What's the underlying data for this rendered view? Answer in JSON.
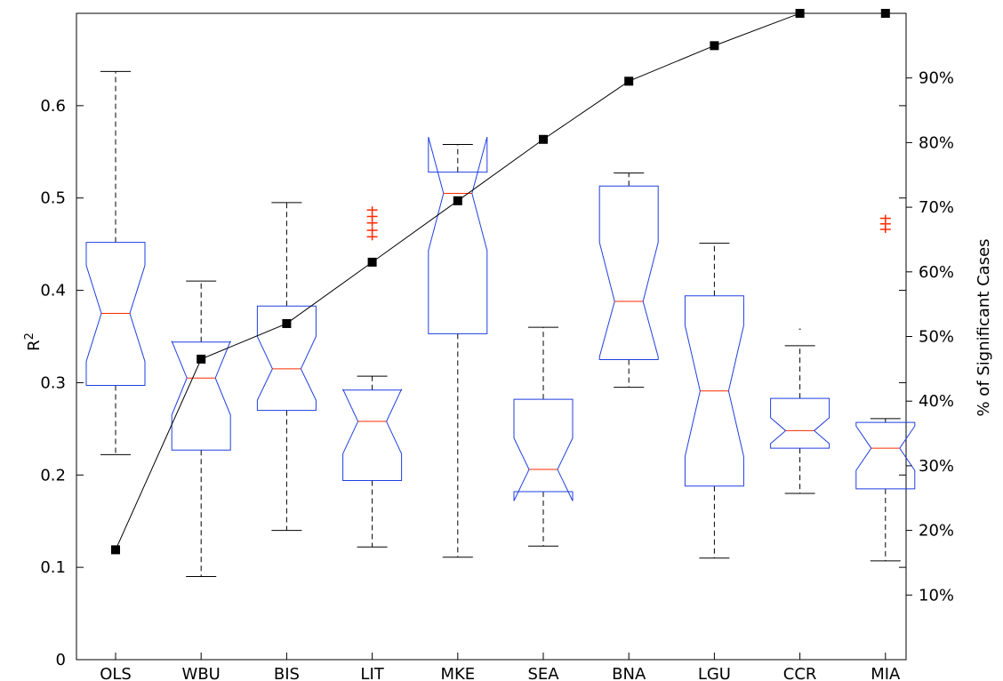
{
  "chart_data": {
    "type": "box",
    "categories": [
      "OLS",
      "WBU",
      "BIS",
      "LIT",
      "MKE",
      "SEA",
      "BNA",
      "LGU",
      "CCR",
      "MIA"
    ],
    "ylabel": "R",
    "ylabel_superscript": "2",
    "y2label": "% of Significant Cases",
    "ylim": [
      0,
      0.7
    ],
    "y2lim": [
      0,
      100
    ],
    "yticks": [
      0,
      0.1,
      0.2,
      0.3,
      0.4,
      0.5,
      0.6
    ],
    "ytick_labels": [
      "0",
      "0.1",
      "0.2",
      "0.3",
      "0.4",
      "0.5",
      "0.6"
    ],
    "y2ticks": [
      10,
      20,
      30,
      40,
      50,
      60,
      70,
      80,
      90
    ],
    "y2tick_labels": [
      "10%",
      "20%",
      "30%",
      "40%",
      "50%",
      "60%",
      "70%",
      "80%",
      "90%"
    ],
    "boxes": [
      {
        "category": "OLS",
        "whisker_low": 0.222,
        "q1": 0.297,
        "median": 0.375,
        "q3": 0.452,
        "whisker_high": 0.637,
        "notch_low": 0.323,
        "notch_high": 0.427,
        "outliers": []
      },
      {
        "category": "WBU",
        "whisker_low": 0.09,
        "q1": 0.227,
        "median": 0.305,
        "q3": 0.344,
        "whisker_high": 0.41,
        "notch_low": 0.265,
        "notch_high": 0.345,
        "outliers": []
      },
      {
        "category": "BIS",
        "whisker_low": 0.14,
        "q1": 0.27,
        "median": 0.315,
        "q3": 0.383,
        "whisker_high": 0.495,
        "notch_low": 0.281,
        "notch_high": 0.35,
        "outliers": []
      },
      {
        "category": "LIT",
        "whisker_low": 0.122,
        "q1": 0.194,
        "median": 0.258,
        "q3": 0.292,
        "whisker_high": 0.307,
        "notch_low": 0.223,
        "notch_high": 0.293,
        "outliers": [
          0.458,
          0.465,
          0.473,
          0.48,
          0.487
        ]
      },
      {
        "category": "MKE",
        "whisker_low": 0.111,
        "q1": 0.353,
        "median": 0.505,
        "q3": 0.528,
        "whisker_high": 0.558,
        "notch_low": 0.443,
        "notch_high": 0.566,
        "outliers": []
      },
      {
        "category": "SEA",
        "whisker_low": 0.123,
        "q1": 0.182,
        "median": 0.206,
        "q3": 0.282,
        "whisker_high": 0.36,
        "notch_low": 0.172,
        "notch_high": 0.24,
        "outliers": []
      },
      {
        "category": "BNA",
        "whisker_low": 0.295,
        "q1": 0.325,
        "median": 0.388,
        "q3": 0.513,
        "whisker_high": 0.527,
        "notch_low": 0.328,
        "notch_high": 0.452,
        "outliers": []
      },
      {
        "category": "LGU",
        "whisker_low": 0.11,
        "q1": 0.188,
        "median": 0.291,
        "q3": 0.394,
        "whisker_high": 0.451,
        "notch_low": 0.22,
        "notch_high": 0.362,
        "outliers": []
      },
      {
        "category": "CCR",
        "whisker_low": 0.18,
        "q1": 0.229,
        "median": 0.248,
        "q3": 0.283,
        "whisker_high": 0.34,
        "notch_low": 0.234,
        "notch_high": 0.262,
        "outliers": [
          0.358
        ]
      },
      {
        "category": "MIA",
        "whisker_low": 0.107,
        "q1": 0.185,
        "median": 0.229,
        "q3": 0.257,
        "whisker_high": 0.261,
        "notch_low": 0.205,
        "notch_high": 0.253,
        "outliers": [
          0.466,
          0.472,
          0.478
        ]
      }
    ],
    "line_series": {
      "axis": "right",
      "unit": "%",
      "values": [
        17,
        46.5,
        52,
        61.5,
        71,
        80.5,
        89.5,
        95,
        100,
        100
      ]
    },
    "grid": false,
    "legend": "none",
    "colors": {
      "box": "#1f3fe0",
      "median": "#ff2a00",
      "outlier": "#ff2a00",
      "whisker": "#000000",
      "line": "#000000",
      "marker": "#000000"
    }
  }
}
